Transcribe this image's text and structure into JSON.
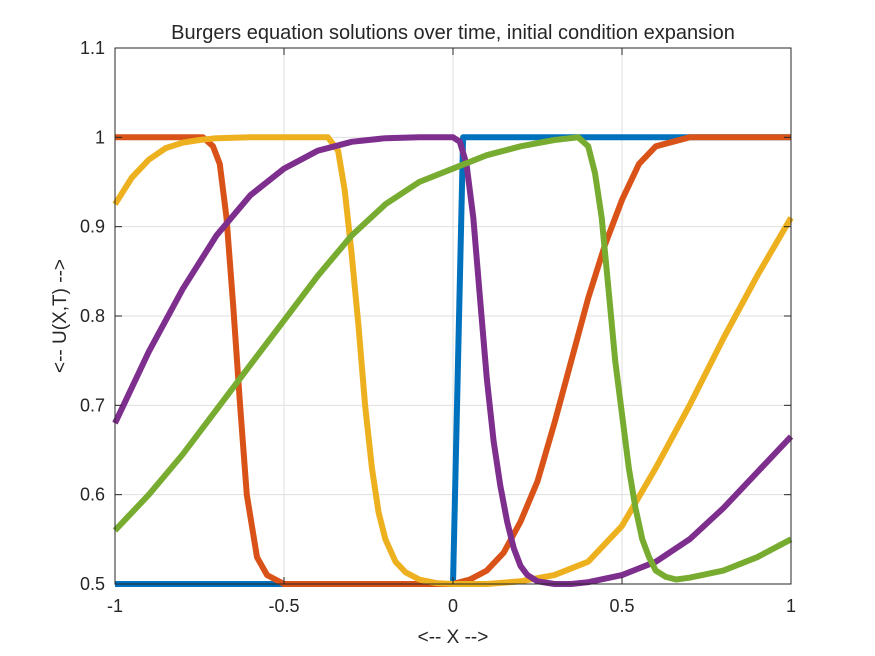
{
  "chart_data": {
    "type": "line",
    "title": "Burgers equation solutions over time, initial condition expansion",
    "xlabel": "<-- X -->",
    "ylabel": "<-- U(X,T) -->",
    "xlim": [
      -1,
      1
    ],
    "ylim": [
      0.5,
      1.1
    ],
    "xticks": [
      "-1",
      "-0.5",
      "0",
      "0.5",
      "1"
    ],
    "yticks": [
      "0.5",
      "0.6",
      "0.7",
      "0.8",
      "0.9",
      "1",
      "1.1"
    ],
    "grid": true,
    "legend": "none",
    "series": [
      {
        "color": "#0072BD",
        "x": [
          -1,
          -0.5,
          0,
          0.03,
          0.5,
          1
        ],
        "y": [
          0.5,
          0.5,
          0.5,
          1.0,
          1.0,
          1.0
        ]
      },
      {
        "color": "#D95319",
        "x": [
          -1,
          -0.8,
          -0.74,
          -0.71,
          -0.69,
          -0.67,
          -0.65,
          -0.63,
          -0.61,
          -0.58,
          -0.55,
          -0.5,
          -0.4,
          -0.2,
          0,
          0.05,
          0.1,
          0.15,
          0.2,
          0.25,
          0.3,
          0.35,
          0.4,
          0.45,
          0.5,
          0.55,
          0.6,
          0.65,
          0.7,
          0.75,
          0.8,
          1
        ],
        "y": [
          1.0,
          1.0,
          1.0,
          0.99,
          0.97,
          0.91,
          0.81,
          0.7,
          0.6,
          0.53,
          0.51,
          0.5,
          0.5,
          0.5,
          0.5,
          0.505,
          0.515,
          0.535,
          0.57,
          0.615,
          0.68,
          0.75,
          0.82,
          0.88,
          0.93,
          0.97,
          0.99,
          0.995,
          1.0,
          1.0,
          1.0,
          1.0
        ]
      },
      {
        "color": "#EDB120",
        "x": [
          -1,
          -0.95,
          -0.9,
          -0.85,
          -0.8,
          -0.75,
          -0.7,
          -0.6,
          -0.5,
          -0.4,
          -0.37,
          -0.34,
          -0.32,
          -0.3,
          -0.28,
          -0.26,
          -0.24,
          -0.22,
          -0.2,
          -0.17,
          -0.14,
          -0.1,
          -0.05,
          0,
          0.1,
          0.2,
          0.3,
          0.4,
          0.5,
          0.6,
          0.7,
          0.8,
          0.9,
          1
        ],
        "y": [
          0.925,
          0.955,
          0.975,
          0.988,
          0.994,
          0.997,
          0.999,
          1.0,
          1.0,
          1.0,
          1.0,
          0.985,
          0.94,
          0.87,
          0.79,
          0.7,
          0.63,
          0.58,
          0.55,
          0.525,
          0.513,
          0.505,
          0.501,
          0.5,
          0.5,
          0.503,
          0.51,
          0.525,
          0.565,
          0.63,
          0.7,
          0.775,
          0.845,
          0.91
        ]
      },
      {
        "color": "#7E2F8E",
        "x": [
          -1,
          -0.9,
          -0.8,
          -0.7,
          -0.6,
          -0.5,
          -0.45,
          -0.4,
          -0.35,
          -0.3,
          -0.25,
          -0.2,
          -0.1,
          0,
          0.02,
          0.04,
          0.06,
          0.08,
          0.1,
          0.12,
          0.14,
          0.16,
          0.18,
          0.2,
          0.22,
          0.25,
          0.3,
          0.35,
          0.4,
          0.5,
          0.6,
          0.7,
          0.8,
          0.9,
          1
        ],
        "y": [
          0.68,
          0.76,
          0.83,
          0.89,
          0.935,
          0.965,
          0.975,
          0.985,
          0.99,
          0.995,
          0.997,
          0.999,
          1.0,
          1.0,
          0.995,
          0.97,
          0.91,
          0.82,
          0.73,
          0.66,
          0.61,
          0.57,
          0.54,
          0.52,
          0.51,
          0.503,
          0.5,
          0.5,
          0.502,
          0.51,
          0.525,
          0.55,
          0.585,
          0.625,
          0.665
        ]
      },
      {
        "color": "#77AC30",
        "x": [
          -1,
          -0.9,
          -0.8,
          -0.7,
          -0.6,
          -0.5,
          -0.4,
          -0.3,
          -0.2,
          -0.1,
          0,
          0.1,
          0.2,
          0.3,
          0.37,
          0.4,
          0.42,
          0.44,
          0.46,
          0.48,
          0.5,
          0.52,
          0.54,
          0.56,
          0.58,
          0.6,
          0.63,
          0.66,
          0.7,
          0.8,
          0.9,
          1
        ],
        "y": [
          0.56,
          0.6,
          0.645,
          0.695,
          0.745,
          0.795,
          0.845,
          0.89,
          0.925,
          0.95,
          0.965,
          0.98,
          0.99,
          0.997,
          1.0,
          0.99,
          0.96,
          0.91,
          0.83,
          0.75,
          0.69,
          0.63,
          0.585,
          0.55,
          0.53,
          0.515,
          0.508,
          0.505,
          0.507,
          0.515,
          0.53,
          0.55
        ]
      }
    ]
  }
}
